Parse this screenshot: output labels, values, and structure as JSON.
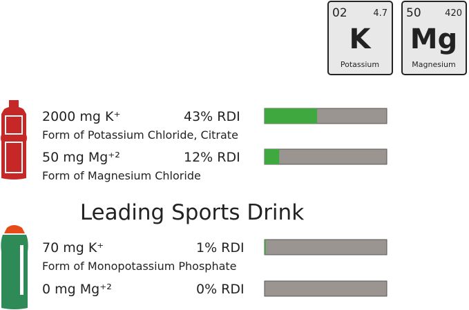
{
  "elements": [
    {
      "number": "02",
      "mass": "4.7",
      "symbol": "K",
      "name": "Potassium"
    },
    {
      "number": "50",
      "mass": "420",
      "symbol": "Mg",
      "name": "Magnesium"
    }
  ],
  "products": [
    {
      "rows": [
        {
          "amount": "2000 mg K⁺",
          "rdi": {
            "value": 43,
            "label": "43% RDI"
          },
          "form": "Form of Potassium Chloride, Citrate"
        },
        {
          "amount": "50 mg Mg⁺²",
          "rdi": {
            "value": 12,
            "label": "12% RDI"
          },
          "form": "Form of Magnesium Chloride"
        }
      ]
    },
    {
      "title": "Leading Sports Drink",
      "rows": [
        {
          "amount": "70 mg K⁺",
          "rdi": {
            "value": 1,
            "label": "1% RDI"
          },
          "form": "Form of Monopotassium Phosphate"
        },
        {
          "amount": "0 mg Mg⁺²",
          "rdi": {
            "value": 0,
            "label": "0% RDI"
          }
        }
      ]
    }
  ]
}
